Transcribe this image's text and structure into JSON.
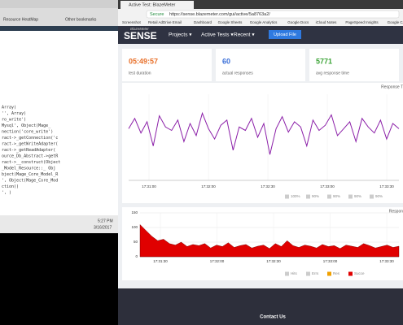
{
  "left_window": {
    "tab": "Resource HeatMap",
    "bookmark": "Other bookmarks",
    "code_lines": [
      "Array)",
      "'', Array)",
      "ro_write')",
      "Mysql', Object(Mage_",
      "nection('core_write')",
      "ract->_getConnection('c",
      "ract->_getWriteAdapter(",
      "ract->_getReadAdapter(",
      "ource_Db_Abstract->getR",
      "ract->__construct(Object",
      "_Model_Resource::_ Obj",
      "bject(Mage_Core_Model_R",
      "', Object(Mage_Core_Mod",
      "ction()",
      "', )"
    ],
    "clock": "5:27 PM",
    "date": "3/16/2017"
  },
  "browser": {
    "tab": "Active Test: BlazeMeter",
    "secure": "Secure",
    "url": "https://sense.blazemeter.com/gui/active/5a8763a2/",
    "bookmarks": [
      "Screenshot",
      "Retail AdDrive Email",
      "Dashboard",
      "Google Sheets",
      "Google Analytics",
      "Google Docs",
      "iCloud Notes",
      "PageSpeed Insights",
      "Google Calendar"
    ]
  },
  "nav": {
    "brand_small": "BlazeMeter",
    "brand": "SENSE",
    "items": [
      "Projects ▾",
      "Active Tests ▾",
      "Recent ▾"
    ],
    "button": "Upload File"
  },
  "cards": [
    {
      "value": "05:49:57",
      "label": "test duration",
      "color": "#e8702a"
    },
    {
      "value": "60",
      "label": "actual responses",
      "color": "#3a6fd8"
    },
    {
      "value": "5771",
      "label": "avg response time",
      "color": "#3aa335"
    }
  ],
  "charts": [
    {
      "type": "line",
      "title": "Response T",
      "color": "#8b1fa8",
      "ylim": [
        0,
        100
      ],
      "xlabels": [
        "17:31:00",
        "17:32:00",
        "17:32:30",
        "17:33:00",
        "17:33:30"
      ],
      "values": [
        60,
        72,
        55,
        68,
        40,
        75,
        62,
        58,
        70,
        45,
        66,
        52,
        78,
        60,
        48,
        64,
        70,
        35,
        62,
        58,
        72,
        50,
        66,
        30,
        60,
        74,
        56,
        68,
        62,
        40,
        70,
        58,
        64,
        76,
        52,
        60,
        68,
        45,
        72,
        62,
        55,
        70,
        48,
        66,
        60
      ],
      "legend": [
        "100%",
        "90%",
        "90%",
        "90%",
        "90%"
      ]
    },
    {
      "type": "area",
      "title": "Respon",
      "color": "#e00000",
      "ylim": [
        0,
        150
      ],
      "yticks": [
        0,
        50,
        100,
        150
      ],
      "xlabels": [
        "17:31:30",
        "17:32:00",
        "17:32:30",
        "17:33:00",
        "17:33:30"
      ],
      "values": [
        110,
        90,
        70,
        55,
        60,
        45,
        40,
        50,
        35,
        42,
        38,
        45,
        30,
        40,
        35,
        48,
        32,
        38,
        42,
        30,
        36,
        40,
        28,
        45,
        35,
        55,
        38,
        32,
        40,
        36,
        30,
        42,
        35,
        38,
        28,
        40,
        36,
        32,
        45,
        38,
        30,
        35,
        40,
        32,
        36
      ],
      "legend": [
        "Hits",
        "Errs",
        "Res",
        "Succe"
      ]
    }
  ],
  "footer": "Contact Us"
}
